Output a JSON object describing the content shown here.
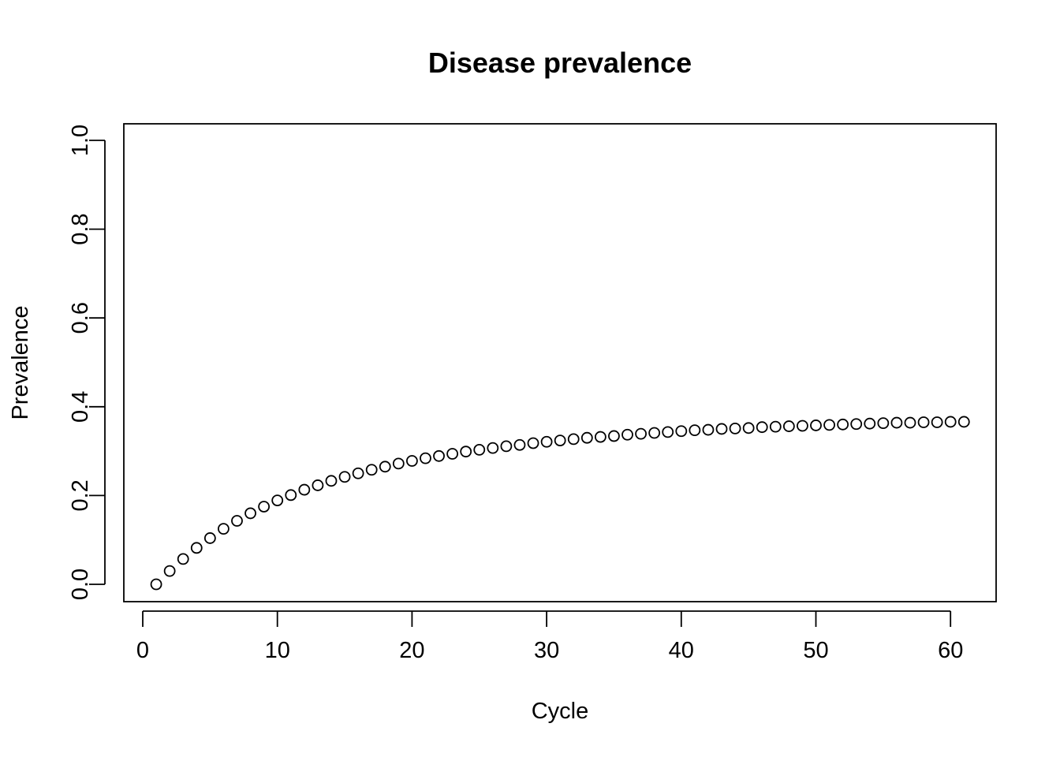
{
  "chart_data": {
    "type": "scatter",
    "title": "Disease prevalence",
    "xlabel": "Cycle",
    "ylabel": "Prevalence",
    "xlim": [
      0,
      61
    ],
    "ylim": [
      0,
      1
    ],
    "xticks": [
      0,
      10,
      20,
      30,
      40,
      50,
      60
    ],
    "xtick_labels": [
      "0",
      "10",
      "20",
      "30",
      "40",
      "50",
      "60"
    ],
    "yticks": [
      0,
      0.2,
      0.4,
      0.6,
      0.8,
      1.0
    ],
    "ytick_labels": [
      "0.0",
      "0.2",
      "0.4",
      "0.6",
      "0.8",
      "1.0"
    ],
    "grid": false,
    "legend": "none",
    "marker": "open-circle",
    "color": "#000000",
    "series": [
      {
        "x": [
          1,
          2,
          3,
          4,
          5,
          6,
          7,
          8,
          9,
          10,
          11,
          12,
          13,
          14,
          15,
          16,
          17,
          18,
          19,
          20,
          21,
          22,
          23,
          24,
          25,
          26,
          27,
          28,
          29,
          30,
          31,
          32,
          33,
          34,
          35,
          36,
          37,
          38,
          39,
          40,
          41,
          42,
          43,
          44,
          45,
          46,
          47,
          48,
          49,
          50,
          51,
          52,
          53,
          54,
          55,
          56,
          57,
          58,
          59,
          60,
          61
        ],
        "y": [
          0.0,
          0.03,
          0.057,
          0.082,
          0.104,
          0.125,
          0.143,
          0.16,
          0.175,
          0.189,
          0.201,
          0.213,
          0.223,
          0.233,
          0.242,
          0.25,
          0.258,
          0.265,
          0.272,
          0.278,
          0.284,
          0.289,
          0.294,
          0.299,
          0.303,
          0.307,
          0.311,
          0.314,
          0.318,
          0.321,
          0.324,
          0.327,
          0.33,
          0.332,
          0.334,
          0.337,
          0.339,
          0.341,
          0.343,
          0.345,
          0.347,
          0.348,
          0.35,
          0.351,
          0.352,
          0.354,
          0.355,
          0.356,
          0.357,
          0.358,
          0.359,
          0.36,
          0.361,
          0.362,
          0.363,
          0.364,
          0.364,
          0.365,
          0.365,
          0.366,
          0.366
        ]
      }
    ]
  }
}
